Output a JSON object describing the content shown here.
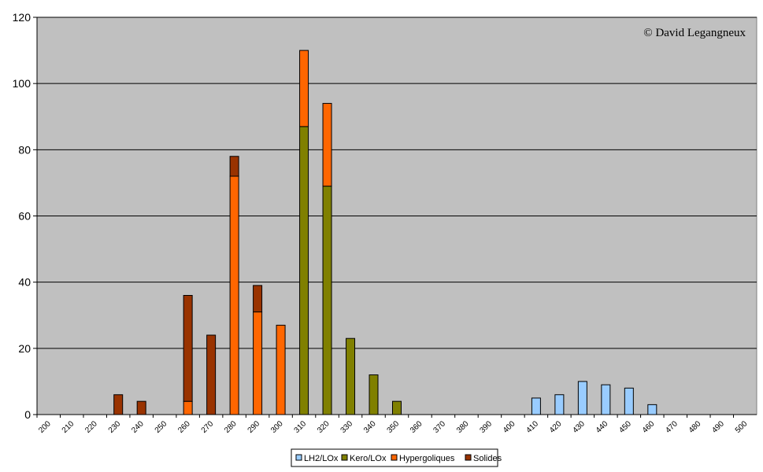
{
  "chart_data": {
    "type": "bar",
    "stacked": true,
    "title": "",
    "xlabel": "",
    "ylabel": "",
    "ylim": [
      0,
      120
    ],
    "y_ticks": [
      0,
      20,
      40,
      60,
      80,
      100,
      120
    ],
    "categories": [
      "200",
      "210",
      "220",
      "230",
      "240",
      "250",
      "260",
      "270",
      "280",
      "290",
      "300",
      "310",
      "320",
      "330",
      "340",
      "350",
      "360",
      "370",
      "380",
      "390",
      "400",
      "410",
      "420",
      "430",
      "440",
      "450",
      "460",
      "470",
      "480",
      "490",
      "500"
    ],
    "series": [
      {
        "name": "LH2/LOx",
        "color": "#99ccff",
        "values": [
          0,
          0,
          0,
          0,
          0,
          0,
          0,
          0,
          0,
          0,
          0,
          0,
          0,
          0,
          0,
          0,
          0,
          0,
          0,
          0,
          0,
          5,
          6,
          10,
          9,
          8,
          3,
          0,
          0,
          0,
          0
        ]
      },
      {
        "name": "Kero/LOx",
        "color": "#808000",
        "values": [
          0,
          0,
          0,
          0,
          0,
          0,
          0,
          0,
          0,
          0,
          0,
          87,
          69,
          23,
          12,
          4,
          0,
          0,
          0,
          0,
          0,
          0,
          0,
          0,
          0,
          0,
          0,
          0,
          0,
          0,
          0
        ]
      },
      {
        "name": "Hypergoliques",
        "color": "#ff6600",
        "values": [
          0,
          0,
          0,
          0,
          0,
          0,
          4,
          0,
          72,
          31,
          27,
          23,
          25,
          0,
          0,
          0,
          0,
          0,
          0,
          0,
          0,
          0,
          0,
          0,
          0,
          0,
          0,
          0,
          0,
          0,
          0
        ]
      },
      {
        "name": "Solides",
        "color": "#993300",
        "values": [
          0,
          0,
          0,
          6,
          4,
          0,
          32,
          24,
          6,
          8,
          0,
          0,
          0,
          0,
          0,
          0,
          0,
          0,
          0,
          0,
          0,
          0,
          0,
          0,
          0,
          0,
          0,
          0,
          0,
          0,
          0
        ]
      }
    ],
    "grid": true,
    "plot_background": "#c0c0c0",
    "legend_position": "bottom",
    "annotation": "© David Legangneux"
  }
}
